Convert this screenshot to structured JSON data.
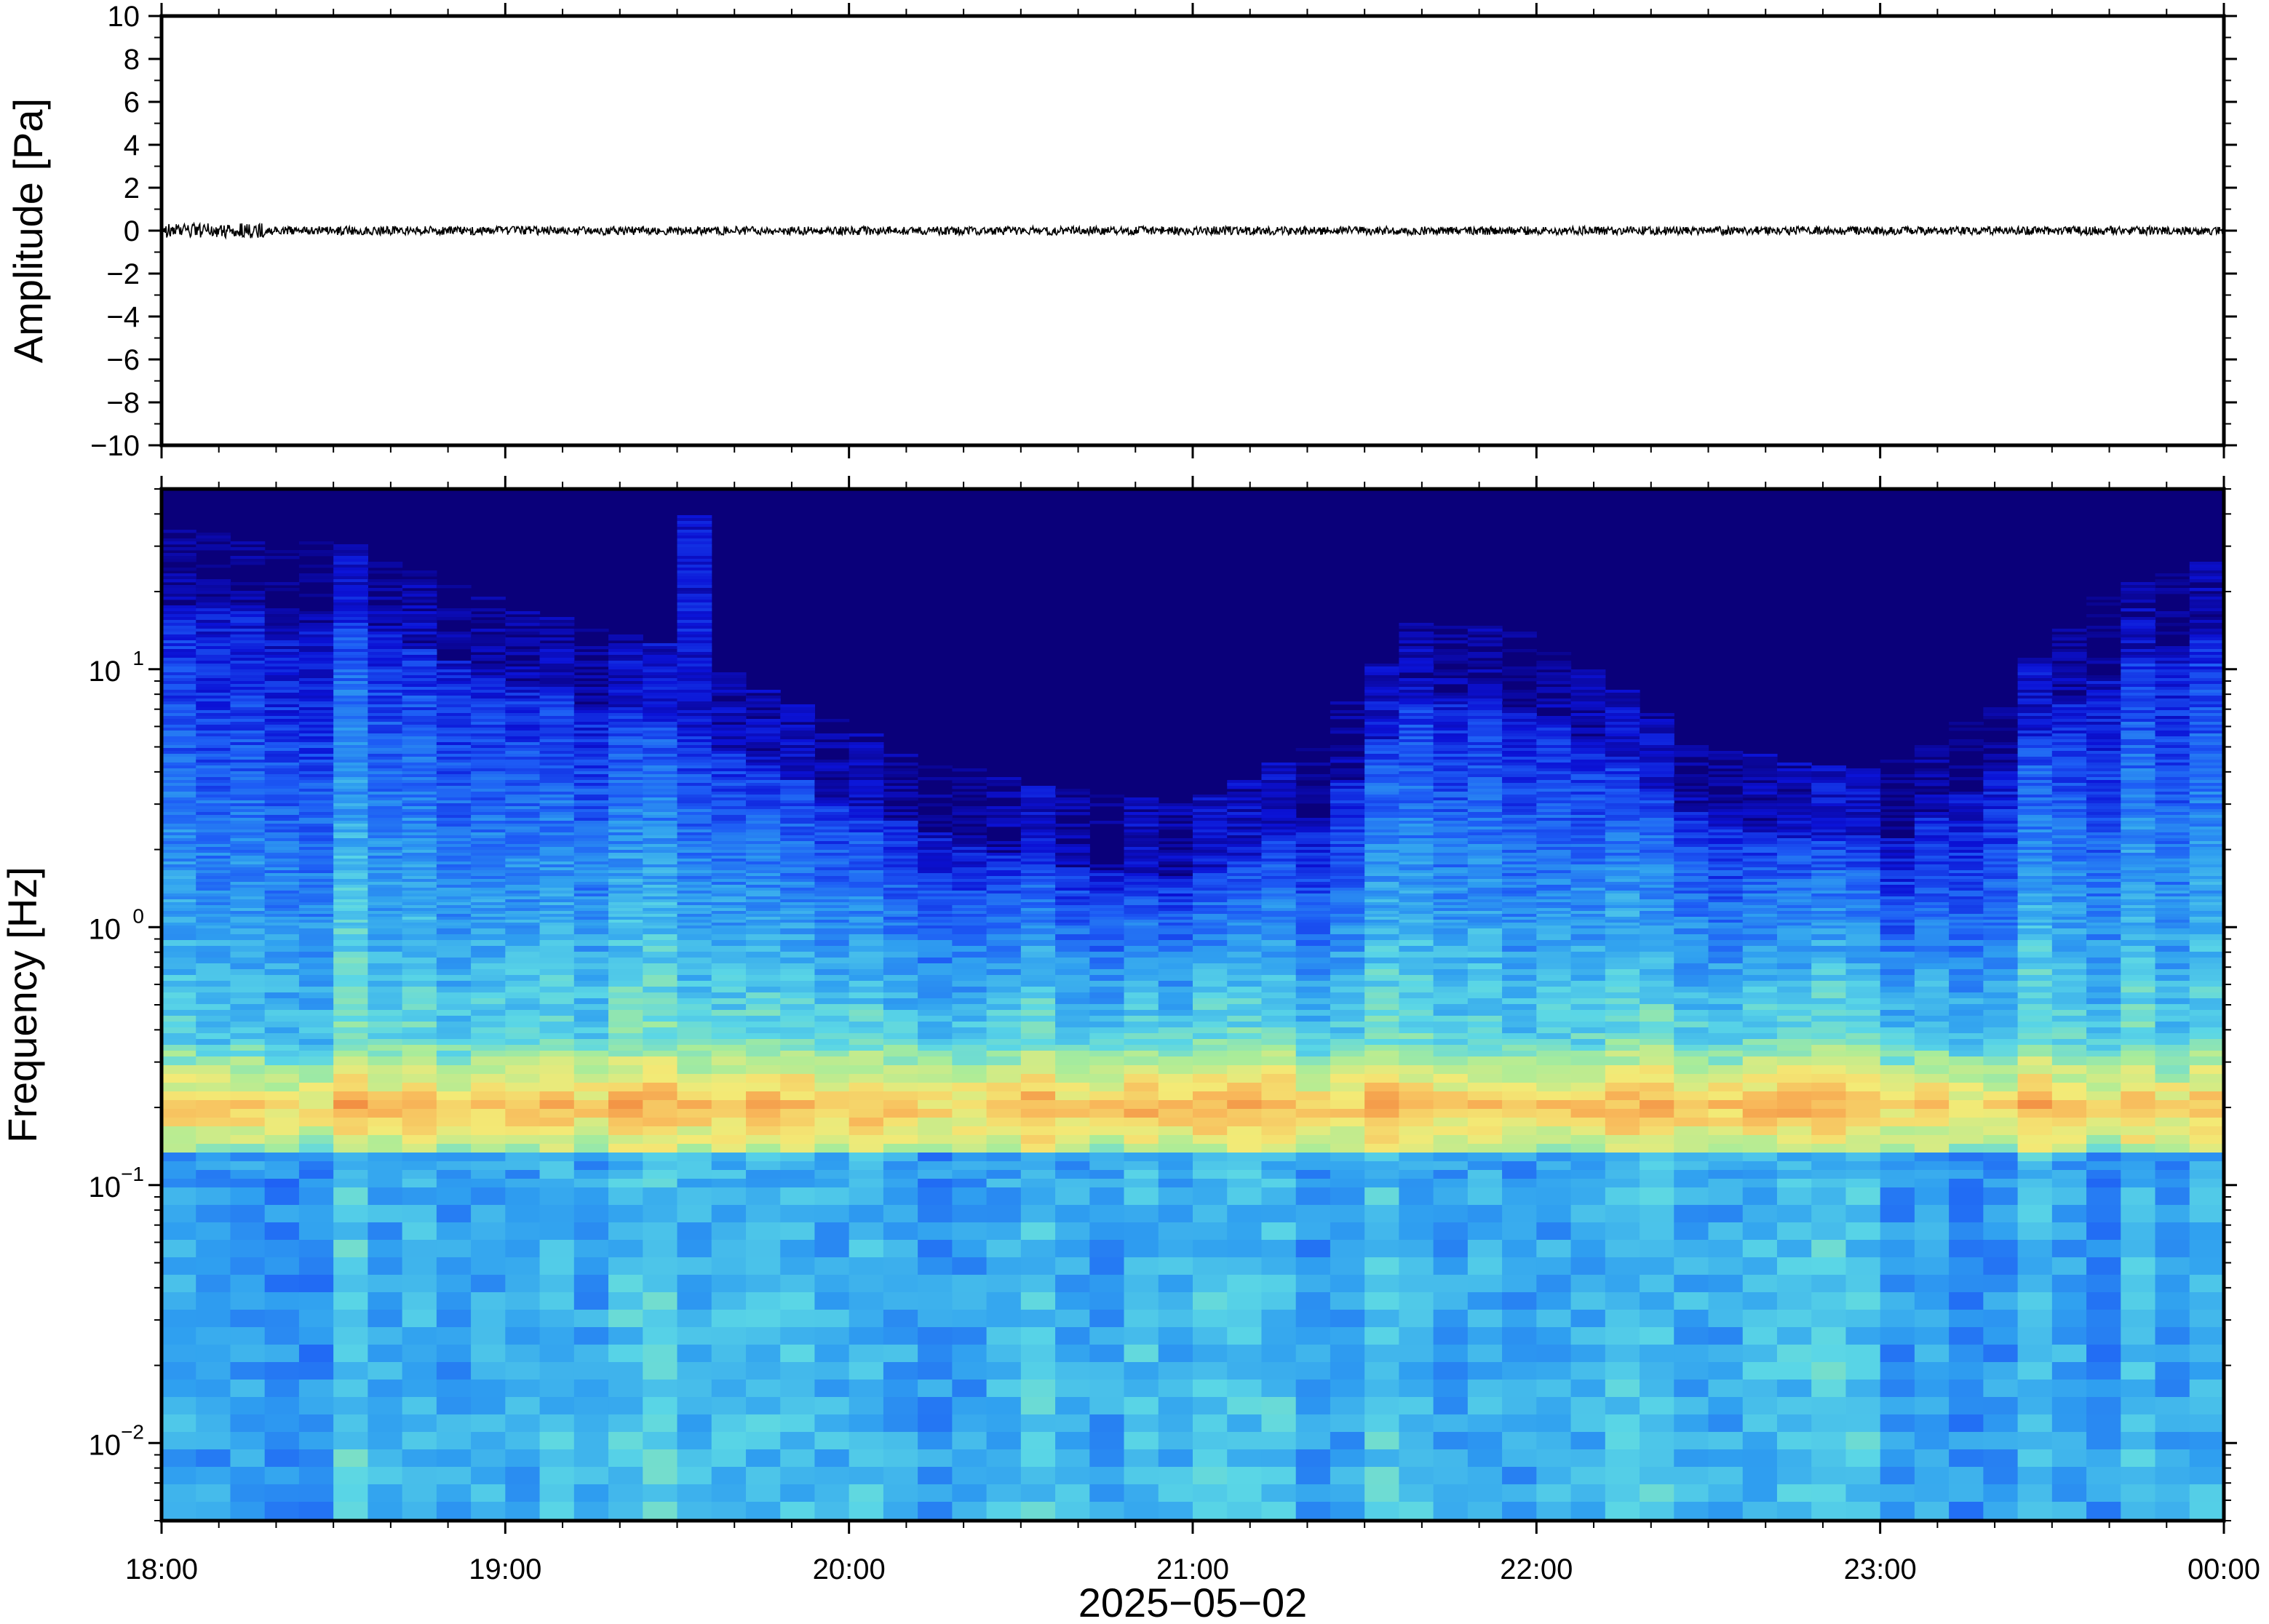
{
  "chart_data": [
    {
      "type": "line",
      "panel": "waveform",
      "ylabel": "Amplitude [Pa]",
      "ylim": [
        -10,
        10
      ],
      "yticks": [
        "10",
        "8",
        "6",
        "4",
        "2",
        "0",
        "−2",
        "−4",
        "−6",
        "−8",
        "−10"
      ],
      "ytick_values": [
        10,
        8,
        6,
        4,
        2,
        0,
        -2,
        -4,
        -6,
        -8,
        -10
      ],
      "xlim": [
        "18:00",
        "00:00"
      ],
      "series": [
        {
          "description_values": "near-zero pressure trace",
          "noise_amplitude": 0.2,
          "early_noise_amplitude": 0.35,
          "baseline": 0,
          "color": "#000000"
        }
      ]
    },
    {
      "type": "heatmap",
      "panel": "spectrogram",
      "ylabel": "Frequency [Hz]",
      "yscale": "log",
      "ylim": [
        0.005,
        50
      ],
      "ytick_values": [
        0.01,
        0.1,
        1,
        10
      ],
      "yticks": [
        {
          "base": "10",
          "exp": "−2"
        },
        {
          "base": "10",
          "exp": "−1"
        },
        {
          "base": "10",
          "exp": "0"
        },
        {
          "base": "10",
          "exp": "1"
        }
      ],
      "xlabel": "2025−05−02",
      "xlim_hours": [
        18,
        24
      ],
      "xticks": [
        "18:00",
        "19:00",
        "20:00",
        "21:00",
        "22:00",
        "23:00",
        "00:00"
      ],
      "colormap": [
        "#0a007a",
        "#0b12d6",
        "#1d5bf5",
        "#2f9ff0",
        "#5ad6e6",
        "#a8ec9a",
        "#f3ea76",
        "#f8b85a",
        "#f07f3a"
      ],
      "microseism_band_hz": [
        0.13,
        0.35
      ],
      "microseism_peak_hz": 0.2,
      "upper_cutoff_hz": [
        {
          "time": "18:00",
          "hz": 18
        },
        {
          "time": "18:30",
          "hz": 16
        },
        {
          "time": "19:00",
          "hz": 9
        },
        {
          "time": "19:30",
          "hz": 6
        },
        {
          "time": "20:00",
          "hz": 3
        },
        {
          "time": "20:30",
          "hz": 1.8
        },
        {
          "time": "21:00",
          "hz": 1.5
        },
        {
          "time": "21:20",
          "hz": 2.5
        },
        {
          "time": "21:40",
          "hz": 8
        },
        {
          "time": "22:00",
          "hz": 7
        },
        {
          "time": "22:30",
          "hz": 2.5
        },
        {
          "time": "23:00",
          "hz": 2
        },
        {
          "time": "23:20",
          "hz": 4
        },
        {
          "time": "23:40",
          "hz": 10
        },
        {
          "time": "00:00",
          "hz": 14
        }
      ],
      "transient": {
        "start": "19:28",
        "end": "19:38",
        "max_hz": 40
      }
    }
  ]
}
